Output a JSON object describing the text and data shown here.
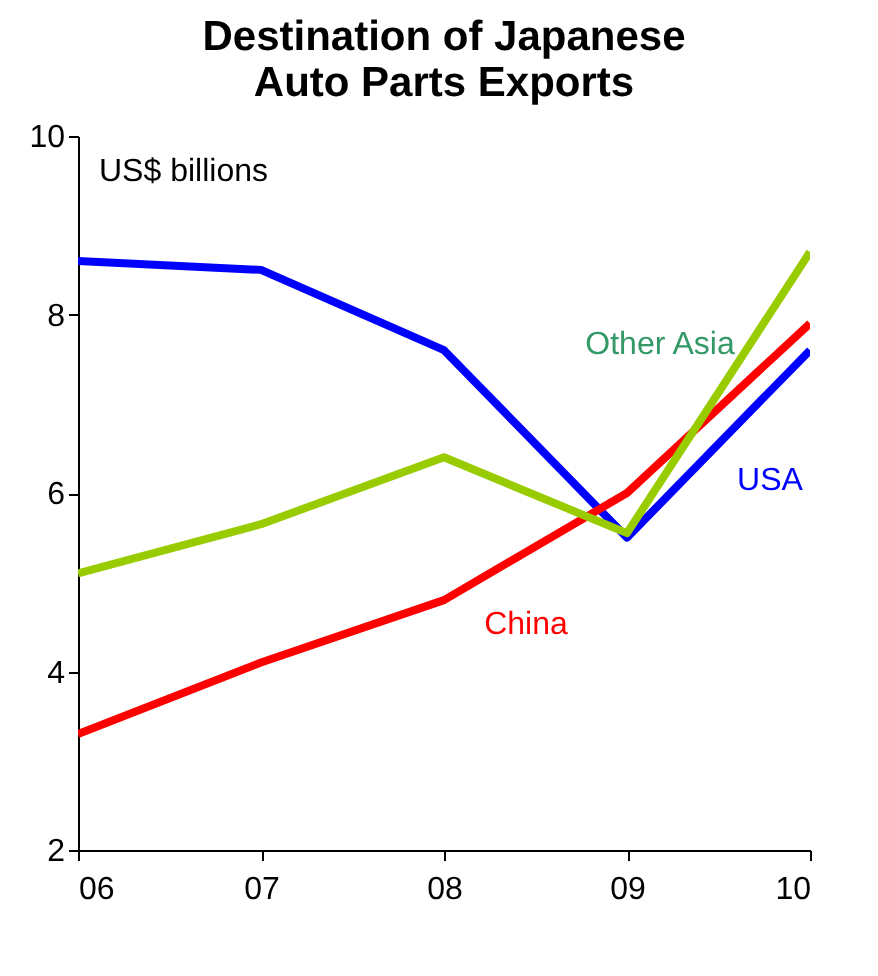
{
  "chart_data": {
    "type": "line",
    "title": [
      "Destination of Japanese",
      "Auto Parts Exports"
    ],
    "ylabel": "US$ billions",
    "x": [
      2006,
      2007,
      2008,
      2009,
      2010
    ],
    "xlim": [
      2006,
      2010
    ],
    "xticks": [
      {
        "value": 2006,
        "label": "06"
      },
      {
        "value": 2007,
        "label": "07"
      },
      {
        "value": 2008,
        "label": "08"
      },
      {
        "value": 2009,
        "label": "09"
      },
      {
        "value": 2010,
        "label": "10"
      }
    ],
    "ylim": [
      2,
      10
    ],
    "yticks": [
      2,
      4,
      6,
      8,
      10
    ],
    "grid": false,
    "marker": "none",
    "line_style": "solid",
    "series": [
      {
        "name": "USA",
        "color": "#0000ff",
        "values": [
          8.6,
          8.5,
          7.6,
          5.5,
          7.6
        ]
      },
      {
        "name": "China",
        "color": "#ff0000",
        "values": [
          3.3,
          4.1,
          4.8,
          6.0,
          7.9
        ]
      },
      {
        "name": "Other Asia",
        "color": "#99cc00",
        "values": [
          5.1,
          5.65,
          6.4,
          5.55,
          8.7
        ]
      }
    ]
  }
}
